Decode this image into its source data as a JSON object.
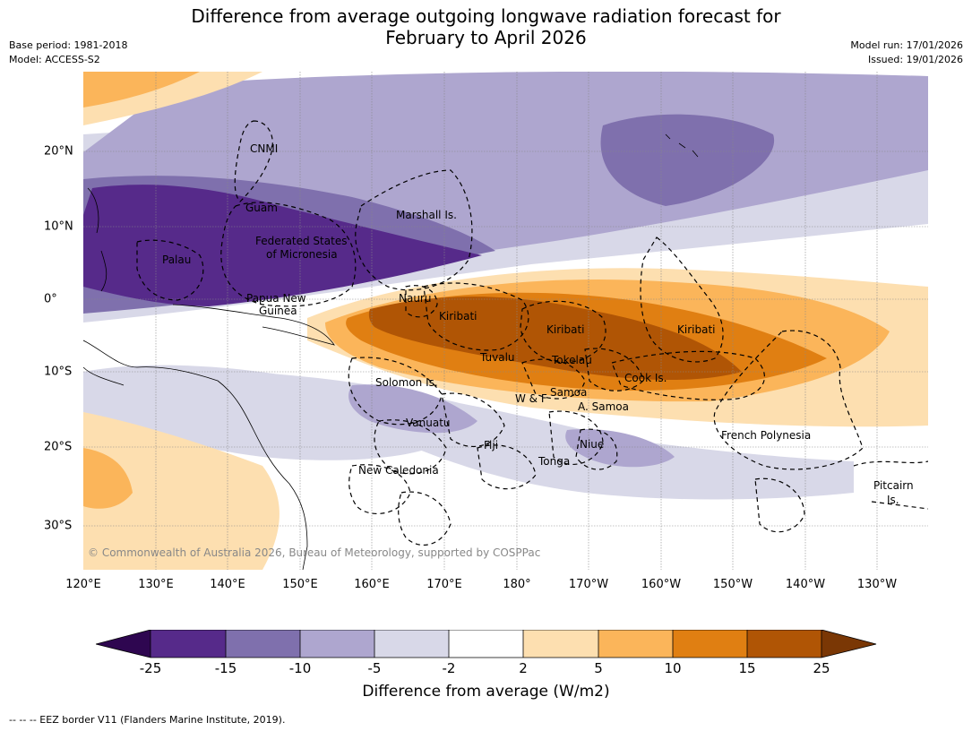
{
  "title": {
    "line1": "Difference from average outgoing longwave radiation forecast for",
    "line2": "February to April 2026"
  },
  "meta": {
    "base_period": "Base period: 1981-2018",
    "model": "Model: ACCESS-S2",
    "model_run": "Model run: 17/01/2026",
    "issued": "Issued: 19/01/2026"
  },
  "axes": {
    "lon_labels": [
      "120°E",
      "130°E",
      "140°E",
      "150°E",
      "160°E",
      "170°E",
      "180°",
      "170°W",
      "160°W",
      "150°W",
      "140°W",
      "130°W"
    ],
    "lat_labels": [
      "20°N",
      "10°N",
      "0°",
      "10°S",
      "20°S",
      "30°S"
    ]
  },
  "regions": [
    {
      "name": "CNMI"
    },
    {
      "name": "Guam"
    },
    {
      "name": "Marshall Is."
    },
    {
      "name": "Federated States"
    },
    {
      "name": "of Micronesia"
    },
    {
      "name": "Palau"
    },
    {
      "name": "Papua New"
    },
    {
      "name": "Guinea"
    },
    {
      "name": "Nauru"
    },
    {
      "name": "Kiribati"
    },
    {
      "name": "Kiribati"
    },
    {
      "name": "Kiribati"
    },
    {
      "name": "Tuvalu"
    },
    {
      "name": "Tokelau"
    },
    {
      "name": "Cook Is."
    },
    {
      "name": "Solomon Is."
    },
    {
      "name": "W & F"
    },
    {
      "name": "Samoa"
    },
    {
      "name": "A. Samoa"
    },
    {
      "name": "Vanuatu"
    },
    {
      "name": "Fiji"
    },
    {
      "name": "Niue"
    },
    {
      "name": "Tonga"
    },
    {
      "name": "French Polynesia"
    },
    {
      "name": "New Caledonia"
    },
    {
      "name": "Pitcairn"
    },
    {
      "name": "Is."
    }
  ],
  "copyright": "© Commonwealth of Australia 2026, Bureau of Meteorology, supported by COSPPac",
  "colorbar": {
    "ticks": [
      "-25",
      "-15",
      "-10",
      "-5",
      "-2",
      "2",
      "5",
      "10",
      "15",
      "25"
    ],
    "colors": [
      "#562a8a",
      "#7f70ad",
      "#aea6cf",
      "#d8d8e8",
      "#ffffff",
      "#fddfb0",
      "#fbb55a",
      "#e07f12",
      "#b05505"
    ],
    "under_color": "#2e0650",
    "over_color": "#7a3705",
    "label": "Difference from average (W/m2)"
  },
  "footnote": "--  --  -- EEZ border V11 (Flanders Marine Institute, 2019)."
}
